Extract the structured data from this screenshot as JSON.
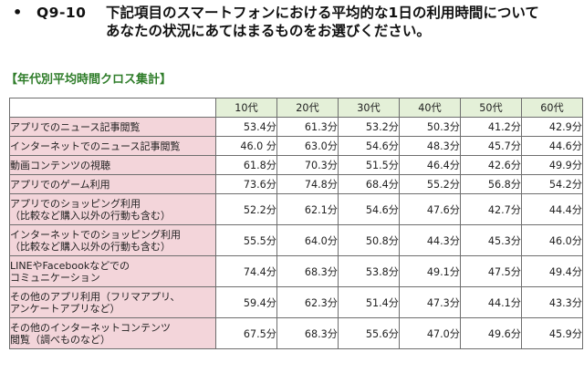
{
  "question": {
    "bullet": "•",
    "id": "Q9-10",
    "line1": "下記項目のスマートフォンにおける平均的な1日の利用時間について",
    "line2": "あなたの状況にあてはまるものをお選びください。"
  },
  "section_title": "【年代別平均時間クロス集計】",
  "table": {
    "age_groups": [
      "10代",
      "20代",
      "30代",
      "40代",
      "50代",
      "60代"
    ],
    "rows": [
      {
        "label_lines": [
          "アプリでのニュース記事閲覧"
        ],
        "values": [
          "53.4分",
          "61.3分",
          "53.2分",
          "50.3分",
          "41.2分",
          "42.9分"
        ]
      },
      {
        "label_lines": [
          "インターネットでのニュース記事閲覧"
        ],
        "values": [
          "46.0 分",
          "63.0分",
          "54.6分",
          "48.3分",
          "45.7分",
          "44.6分"
        ]
      },
      {
        "label_lines": [
          "動画コンテンツの視聴"
        ],
        "values": [
          "61.8分",
          "70.3分",
          "51.5分",
          "46.4分",
          "42.6分",
          "49.9分"
        ]
      },
      {
        "label_lines": [
          "アプリでのゲーム利用"
        ],
        "values": [
          "73.6分",
          "74.8分",
          "68.4分",
          "55.2分",
          "56.8分",
          "54.2分"
        ]
      },
      {
        "label_lines": [
          "アプリでのショッピング利用",
          "（比較など購入以外の行動も含む）"
        ],
        "values": [
          "52.2分",
          "62.1分",
          "54.6分",
          "47.6分",
          "42.7分",
          "44.4分"
        ]
      },
      {
        "label_lines": [
          "インターネットでのショッピング利用",
          "（比較など購入以外の行動も含む）"
        ],
        "values": [
          "55.5分",
          "64.0分",
          "50.8分",
          "44.3分",
          "45.3分",
          "46.0分"
        ]
      },
      {
        "label_lines": [
          "LINEやFacebookなどでの",
          "コミュニケーション"
        ],
        "values": [
          "74.4分",
          "68.3分",
          "53.8分",
          "49.1分",
          "47.5分",
          "49.4分"
        ]
      },
      {
        "label_lines": [
          "その他のアプリ利用（フリマアプリ、",
          "アンケートアプリなど）"
        ],
        "values": [
          "59.4分",
          "62.3分",
          "51.4分",
          "47.3分",
          "44.1分",
          "43.3分"
        ]
      },
      {
        "label_lines": [
          "その他のインターネットコンテンツ",
          "閲覧（調べものなど）"
        ],
        "values": [
          "67.5分",
          "68.3分",
          "55.6分",
          "47.0分",
          "49.6分",
          "45.9分"
        ]
      }
    ]
  }
}
